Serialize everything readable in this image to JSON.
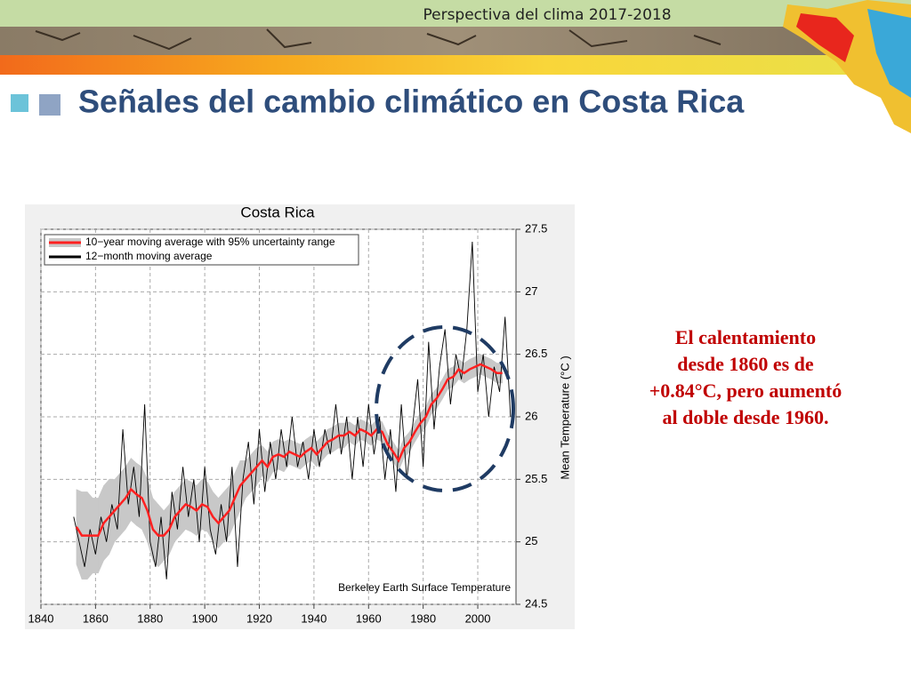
{
  "header": {
    "top_label": "Perspectiva del clima 2017-2018",
    "title": "Señales del cambio climático en Costa Rica"
  },
  "chart_data": {
    "type": "line",
    "title": "Costa Rica",
    "ylabel": "Mean Temperature (°C )",
    "annotation": "Berkeley Earth Surface Temperature",
    "xlim": [
      1840,
      2014
    ],
    "xticks": [
      1840,
      1860,
      1880,
      1900,
      1920,
      1940,
      1960,
      1980,
      2000
    ],
    "ylim": [
      24.5,
      27.5
    ],
    "yticks": [
      24.5,
      25,
      25.5,
      26,
      26.5,
      27,
      27.5
    ],
    "grid": true,
    "legend": "upper left",
    "series": [
      {
        "name": "10−year moving average with 95% uncertainty range",
        "color": "#ff2020",
        "band_color": "#c8c8c8",
        "x": [
          1853,
          1855,
          1857,
          1859,
          1861,
          1863,
          1865,
          1867,
          1869,
          1871,
          1873,
          1875,
          1877,
          1879,
          1881,
          1883,
          1885,
          1887,
          1889,
          1891,
          1893,
          1895,
          1897,
          1899,
          1901,
          1903,
          1905,
          1907,
          1909,
          1911,
          1913,
          1915,
          1917,
          1919,
          1921,
          1923,
          1925,
          1927,
          1929,
          1931,
          1933,
          1935,
          1937,
          1939,
          1941,
          1943,
          1945,
          1947,
          1949,
          1951,
          1953,
          1955,
          1957,
          1959,
          1961,
          1963,
          1965,
          1967,
          1969,
          1971,
          1973,
          1975,
          1977,
          1979,
          1981,
          1983,
          1985,
          1987,
          1989,
          1991,
          1993,
          1995,
          1997,
          1999,
          2001,
          2003,
          2005,
          2007,
          2009
        ],
        "values": [
          25.12,
          25.05,
          25.05,
          25.05,
          25.05,
          25.15,
          25.2,
          25.25,
          25.3,
          25.35,
          25.42,
          25.38,
          25.35,
          25.25,
          25.1,
          25.05,
          25.05,
          25.1,
          25.2,
          25.25,
          25.3,
          25.28,
          25.25,
          25.3,
          25.28,
          25.2,
          25.15,
          25.2,
          25.25,
          25.35,
          25.45,
          25.5,
          25.55,
          25.6,
          25.65,
          25.6,
          25.68,
          25.7,
          25.68,
          25.72,
          25.7,
          25.68,
          25.72,
          25.75,
          25.7,
          25.75,
          25.8,
          25.82,
          25.85,
          25.85,
          25.88,
          25.85,
          25.9,
          25.88,
          25.85,
          25.9,
          25.88,
          25.78,
          25.72,
          25.65,
          25.75,
          25.8,
          25.88,
          25.95,
          26.0,
          26.1,
          26.15,
          26.22,
          26.3,
          26.32,
          26.38,
          26.35,
          26.38,
          26.4,
          26.42,
          26.4,
          26.38,
          26.35,
          26.35
        ],
        "uncertainty": [
          0.3,
          0.35,
          0.35,
          0.3,
          0.3,
          0.3,
          0.3,
          0.25,
          0.25,
          0.25,
          0.25,
          0.25,
          0.25,
          0.25,
          0.25,
          0.25,
          0.2,
          0.2,
          0.2,
          0.2,
          0.2,
          0.2,
          0.2,
          0.2,
          0.2,
          0.2,
          0.2,
          0.2,
          0.2,
          0.2,
          0.2,
          0.15,
          0.15,
          0.15,
          0.12,
          0.12,
          0.12,
          0.12,
          0.12,
          0.1,
          0.1,
          0.1,
          0.1,
          0.1,
          0.1,
          0.1,
          0.1,
          0.1,
          0.1,
          0.1,
          0.08,
          0.08,
          0.08,
          0.08,
          0.08,
          0.08,
          0.08,
          0.08,
          0.08,
          0.08,
          0.08,
          0.08,
          0.08,
          0.08,
          0.08,
          0.08,
          0.08,
          0.08,
          0.08,
          0.08,
          0.08,
          0.08,
          0.08,
          0.08,
          0.08,
          0.08,
          0.08,
          0.08,
          0.08
        ]
      },
      {
        "name": "12−month moving average",
        "color": "#000000",
        "x": [
          1852,
          1854,
          1856,
          1858,
          1860,
          1862,
          1864,
          1866,
          1868,
          1870,
          1872,
          1874,
          1876,
          1878,
          1880,
          1882,
          1884,
          1886,
          1888,
          1890,
          1892,
          1894,
          1896,
          1898,
          1900,
          1902,
          1904,
          1906,
          1908,
          1910,
          1912,
          1914,
          1916,
          1918,
          1920,
          1922,
          1924,
          1926,
          1928,
          1930,
          1932,
          1934,
          1936,
          1938,
          1940,
          1942,
          1944,
          1946,
          1948,
          1950,
          1952,
          1954,
          1956,
          1958,
          1960,
          1962,
          1964,
          1966,
          1968,
          1970,
          1972,
          1974,
          1976,
          1978,
          1980,
          1982,
          1984,
          1986,
          1988,
          1990,
          1992,
          1994,
          1996,
          1998,
          2000,
          2002,
          2004,
          2006,
          2008,
          2010,
          2012
        ],
        "values": [
          25.2,
          25.0,
          24.8,
          25.1,
          24.9,
          25.2,
          25.0,
          25.3,
          25.1,
          25.9,
          25.3,
          25.6,
          25.2,
          26.1,
          25.0,
          24.8,
          25.2,
          24.7,
          25.4,
          25.1,
          25.6,
          25.2,
          25.5,
          25.0,
          25.6,
          25.1,
          24.9,
          25.3,
          25.0,
          25.6,
          24.8,
          25.5,
          25.8,
          25.3,
          25.9,
          25.4,
          25.8,
          25.5,
          25.9,
          25.6,
          26.0,
          25.6,
          25.8,
          25.5,
          25.9,
          25.6,
          25.9,
          25.7,
          26.1,
          25.7,
          26.0,
          25.5,
          26.0,
          25.6,
          26.1,
          25.7,
          26.0,
          25.5,
          25.9,
          25.4,
          26.1,
          25.5,
          25.9,
          26.3,
          25.6,
          26.6,
          25.9,
          26.4,
          26.7,
          26.1,
          26.5,
          26.3,
          26.7,
          27.4,
          26.2,
          26.5,
          26.0,
          26.4,
          26.2,
          26.8,
          26.0
        ]
      }
    ]
  },
  "callout": {
    "lines": [
      "El calentamiento",
      "desde 1860 es de",
      "+0.84°C, pero aumentó",
      "al doble desde 1960."
    ]
  }
}
